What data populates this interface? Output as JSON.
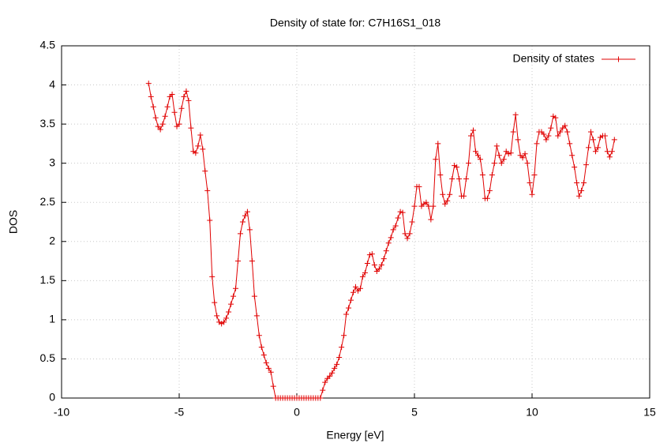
{
  "chart_data": {
    "type": "line",
    "title": "Density of state for: C7H16S1_018",
    "xlabel": "Energy [eV]",
    "ylabel": "DOS",
    "xlim": [
      -10,
      15
    ],
    "xticks": [
      -10,
      -5,
      0,
      5,
      10,
      15
    ],
    "ylim": [
      0,
      4.5
    ],
    "yticks": [
      0,
      0.5,
      1,
      1.5,
      2,
      2.5,
      3,
      3.5,
      4,
      4.5
    ],
    "grid": true,
    "legend": "top-right",
    "x": [
      -6.3,
      -6.2,
      -6.1,
      -6,
      -5.9,
      -5.8,
      -5.7,
      -5.6,
      -5.5,
      -5.4,
      -5.3,
      -5.2,
      -5.1,
      -5,
      -4.9,
      -4.8,
      -4.7,
      -4.6,
      -4.5,
      -4.4,
      -4.3,
      -4.2,
      -4.1,
      -4,
      -3.9,
      -3.8,
      -3.7,
      -3.6,
      -3.5,
      -3.4,
      -3.3,
      -3.2,
      -3.1,
      -3,
      -2.9,
      -2.8,
      -2.7,
      -2.6,
      -2.5,
      -2.4,
      -2.3,
      -2.2,
      -2.1,
      -2,
      -1.9,
      -1.8,
      -1.7,
      -1.6,
      -1.5,
      -1.4,
      -1.3,
      -1.2,
      -1.1,
      -1,
      -0.9,
      -0.8,
      -0.7,
      -0.6,
      -0.5,
      -0.4,
      -0.3,
      -0.2,
      -0.1,
      0,
      0.1,
      0.2,
      0.3,
      0.4,
      0.5,
      0.6,
      0.7,
      0.8,
      0.9,
      1,
      1.1,
      1.2,
      1.3,
      1.4,
      1.5,
      1.6,
      1.7,
      1.8,
      1.9,
      2,
      2.1,
      2.2,
      2.3,
      2.4,
      2.5,
      2.6,
      2.7,
      2.8,
      2.9,
      3,
      3.1,
      3.2,
      3.3,
      3.4,
      3.5,
      3.6,
      3.7,
      3.8,
      3.9,
      4,
      4.1,
      4.2,
      4.3,
      4.4,
      4.5,
      4.6,
      4.7,
      4.8,
      4.9,
      5,
      5.1,
      5.2,
      5.3,
      5.4,
      5.5,
      5.6,
      5.7,
      5.8,
      5.9,
      6,
      6.1,
      6.2,
      6.3,
      6.4,
      6.5,
      6.6,
      6.7,
      6.8,
      6.9,
      7,
      7.1,
      7.2,
      7.3,
      7.4,
      7.5,
      7.6,
      7.7,
      7.8,
      7.9,
      8,
      8.1,
      8.2,
      8.3,
      8.4,
      8.5,
      8.6,
      8.7,
      8.8,
      8.9,
      9,
      9.1,
      9.2,
      9.3,
      9.4,
      9.5,
      9.6,
      9.7,
      9.8,
      9.9,
      10,
      10.1,
      10.2,
      10.3,
      10.4,
      10.5,
      10.6,
      10.7,
      10.8,
      10.9,
      11,
      11.1,
      11.2,
      11.3,
      11.4,
      11.5,
      11.6,
      11.7,
      11.8,
      11.9,
      12,
      12.1,
      12.2,
      12.3,
      12.4,
      12.5,
      12.6,
      12.7,
      12.8,
      12.9,
      13,
      13.1,
      13.2,
      13.3,
      13.4,
      13.5
    ],
    "series": [
      {
        "name": "Density of states",
        "color": "#e00000",
        "values": [
          4.02,
          3.85,
          3.72,
          3.58,
          3.47,
          3.43,
          3.5,
          3.6,
          3.72,
          3.85,
          3.88,
          3.65,
          3.47,
          3.5,
          3.7,
          3.85,
          3.92,
          3.8,
          3.45,
          3.15,
          3.13,
          3.22,
          3.36,
          3.18,
          2.9,
          2.65,
          2.27,
          1.55,
          1.22,
          1.05,
          0.97,
          0.95,
          0.97,
          1.02,
          1.1,
          1.2,
          1.3,
          1.4,
          1.75,
          2.1,
          2.25,
          2.33,
          2.38,
          2.15,
          1.75,
          1.3,
          1.05,
          0.8,
          0.65,
          0.55,
          0.45,
          0.38,
          0.33,
          0.15,
          0,
          0,
          0,
          0,
          0,
          0,
          0,
          0,
          0,
          0,
          0,
          0,
          0,
          0,
          0,
          0,
          0,
          0,
          0,
          0,
          0.1,
          0.2,
          0.25,
          0.28,
          0.32,
          0.38,
          0.43,
          0.52,
          0.65,
          0.8,
          1.07,
          1.15,
          1.25,
          1.35,
          1.42,
          1.37,
          1.4,
          1.55,
          1.6,
          1.72,
          1.83,
          1.84,
          1.7,
          1.62,
          1.65,
          1.7,
          1.78,
          1.88,
          1.98,
          2.05,
          2.15,
          2.2,
          2.3,
          2.38,
          2.37,
          2.1,
          2.04,
          2.1,
          2.25,
          2.45,
          2.7,
          2.7,
          2.45,
          2.48,
          2.5,
          2.45,
          2.28,
          2.45,
          3.05,
          3.25,
          2.85,
          2.6,
          2.48,
          2.52,
          2.6,
          2.8,
          2.97,
          2.95,
          2.8,
          2.58,
          2.58,
          2.8,
          3,
          3.35,
          3.42,
          3.15,
          3.1,
          3.05,
          2.85,
          2.55,
          2.55,
          2.65,
          2.85,
          3,
          3.22,
          3.1,
          3,
          3.05,
          3.15,
          3.12,
          3.13,
          3.4,
          3.62,
          3.3,
          3.1,
          3.07,
          3.12,
          3,
          2.75,
          2.6,
          2.85,
          3.25,
          3.4,
          3.4,
          3.37,
          3.3,
          3.35,
          3.45,
          3.6,
          3.58,
          3.35,
          3.4,
          3.45,
          3.48,
          3.4,
          3.25,
          3.1,
          2.95,
          2.75,
          2.58,
          2.65,
          2.75,
          2.98,
          3.2,
          3.4,
          3.3,
          3.15,
          3.2,
          3.33,
          3.35,
          3.35,
          3.15,
          3.08,
          3.15,
          3.3
        ]
      }
    ]
  }
}
